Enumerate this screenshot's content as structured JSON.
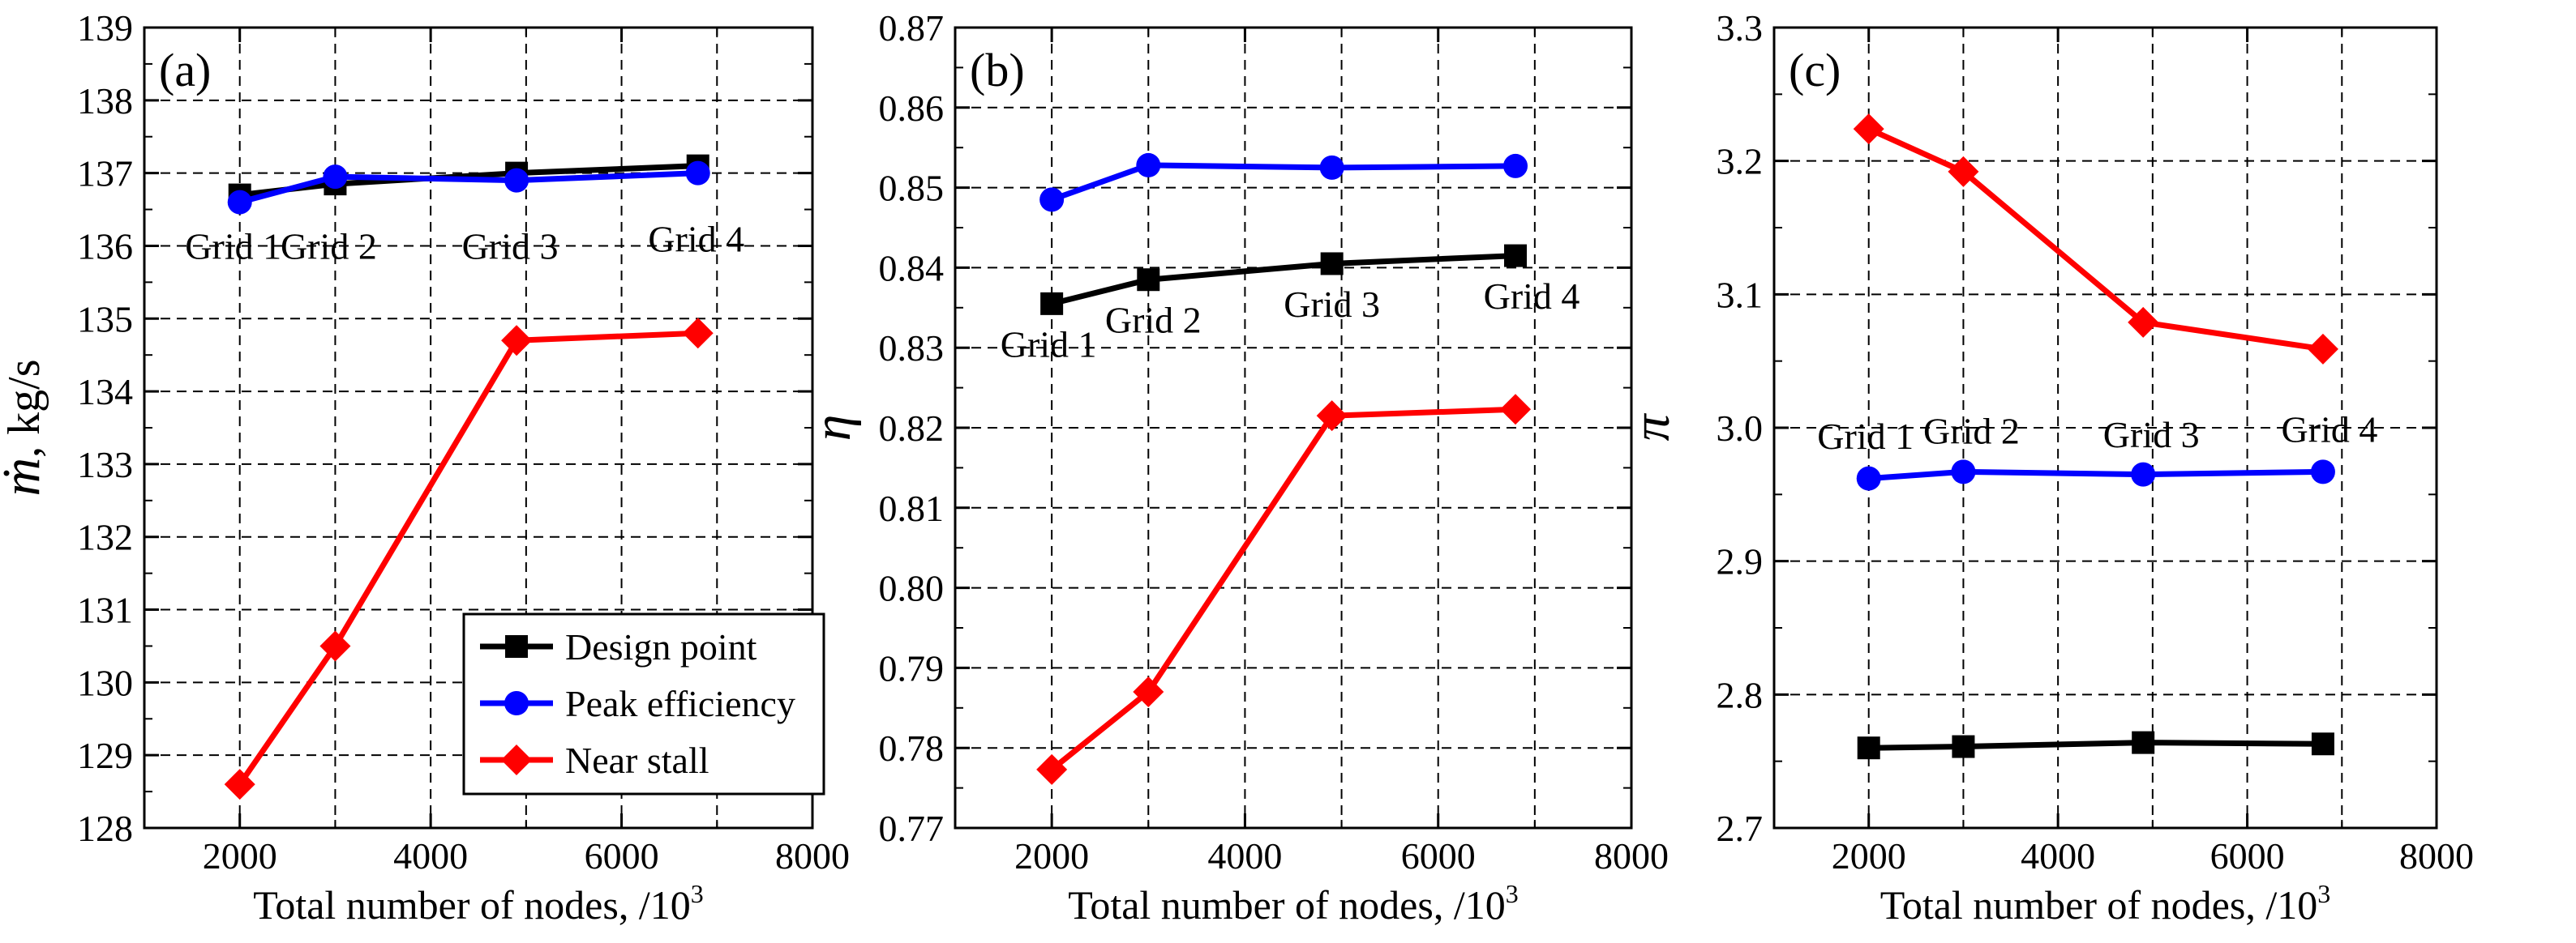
{
  "chart_data": [
    {
      "type": "line",
      "panel_label": "(a)",
      "xlabel": "Total number of nodes, /10",
      "xlabel_sup": "3",
      "ylabel_symbol": "ṁ",
      "ylabel_rest": ", kg/s",
      "xlim": [
        1000,
        8000
      ],
      "ylim": [
        128,
        139
      ],
      "xticks": [
        "2000",
        "4000",
        "6000",
        "8000"
      ],
      "yticks": [
        "128",
        "129",
        "130",
        "131",
        "132",
        "133",
        "134",
        "135",
        "136",
        "137",
        "138",
        "139"
      ],
      "grid": true,
      "legend_position": "bottom-right",
      "series": [
        {
          "name": "Design point",
          "color": "#000000",
          "marker": "square",
          "x": [
            2000,
            3000,
            4900,
            6800
          ],
          "y": [
            136.7,
            136.85,
            137.0,
            137.1
          ]
        },
        {
          "name": "Peak efficiency",
          "color": "#0000ff",
          "marker": "circle",
          "x": [
            2000,
            3000,
            4900,
            6800
          ],
          "y": [
            136.6,
            136.95,
            136.9,
            137.0
          ]
        },
        {
          "name": "Near stall",
          "color": "#ff0000",
          "marker": "diamond",
          "x": [
            2000,
            3000,
            4900,
            6800
          ],
          "y": [
            128.6,
            130.5,
            134.7,
            134.8
          ]
        }
      ],
      "annotations": [
        {
          "text": "Grid 1",
          "x": 2000,
          "y": 136.0
        },
        {
          "text": "Grid 2",
          "x": 3000,
          "y": 136.0
        },
        {
          "text": "Grid 3",
          "x": 4900,
          "y": 136.0
        },
        {
          "text": "Grid 4",
          "x": 6800,
          "y": 136.1
        }
      ]
    },
    {
      "type": "line",
      "panel_label": "(b)",
      "xlabel": "Total number of nodes, /10",
      "xlabel_sup": "3",
      "ylabel_symbol": "η",
      "ylabel_rest": "",
      "xlim": [
        1000,
        8000
      ],
      "ylim": [
        0.77,
        0.87
      ],
      "xticks": [
        "2000",
        "4000",
        "6000",
        "8000"
      ],
      "yticks": [
        "0.77",
        "0.78",
        "0.79",
        "0.80",
        "0.81",
        "0.82",
        "0.83",
        "0.84",
        "0.85",
        "0.86",
        "0.87"
      ],
      "grid": true,
      "series": [
        {
          "name": "Design point",
          "color": "#000000",
          "marker": "square",
          "x": [
            2000,
            3000,
            4900,
            6800
          ],
          "y": [
            0.8355,
            0.8385,
            0.8405,
            0.8415
          ]
        },
        {
          "name": "Peak efficiency",
          "color": "#0000ff",
          "marker": "circle",
          "x": [
            2000,
            3000,
            4900,
            6800
          ],
          "y": [
            0.8485,
            0.8528,
            0.8525,
            0.8527
          ]
        },
        {
          "name": "Near stall",
          "color": "#ff0000",
          "marker": "diamond",
          "x": [
            2000,
            3000,
            4900,
            6800
          ],
          "y": [
            0.7773,
            0.787,
            0.8215,
            0.8223
          ]
        }
      ],
      "annotations": [
        {
          "text": "Grid 1",
          "x": 2000,
          "y": 0.8305
        },
        {
          "text": "Grid 2",
          "x": 3000,
          "y": 0.8335
        },
        {
          "text": "Grid 3",
          "x": 4900,
          "y": 0.8355
        },
        {
          "text": "Grid 4",
          "x": 6800,
          "y": 0.8365
        }
      ]
    },
    {
      "type": "line",
      "panel_label": "(c)",
      "xlabel": "Total number of nodes, /10",
      "xlabel_sup": "3",
      "ylabel_symbol": "π",
      "ylabel_rest": "",
      "xlim": [
        1000,
        8000
      ],
      "ylim": [
        2.7,
        3.3
      ],
      "xticks": [
        "2000",
        "4000",
        "6000",
        "8000"
      ],
      "yticks": [
        "2.7",
        "2.8",
        "2.9",
        "3.0",
        "3.1",
        "3.2",
        "3.3"
      ],
      "grid": true,
      "series": [
        {
          "name": "Design point",
          "color": "#000000",
          "marker": "square",
          "x": [
            2000,
            3000,
            4900,
            6800
          ],
          "y": [
            2.76,
            2.761,
            2.764,
            2.763
          ]
        },
        {
          "name": "Peak efficiency",
          "color": "#0000ff",
          "marker": "circle",
          "x": [
            2000,
            3000,
            4900,
            6800
          ],
          "y": [
            2.962,
            2.967,
            2.965,
            2.967
          ]
        },
        {
          "name": "Near stall",
          "color": "#ff0000",
          "marker": "diamond",
          "x": [
            2000,
            3000,
            4900,
            6800
          ],
          "y": [
            3.224,
            3.192,
            3.079,
            3.059
          ]
        }
      ],
      "annotations": [
        {
          "text": "Grid 1",
          "x": 2000,
          "y": 2.994
        },
        {
          "text": "Grid 2",
          "x": 3000,
          "y": 2.998
        },
        {
          "text": "Grid 3",
          "x": 4900,
          "y": 2.995
        },
        {
          "text": "Grid 4",
          "x": 6800,
          "y": 2.999
        }
      ]
    }
  ]
}
